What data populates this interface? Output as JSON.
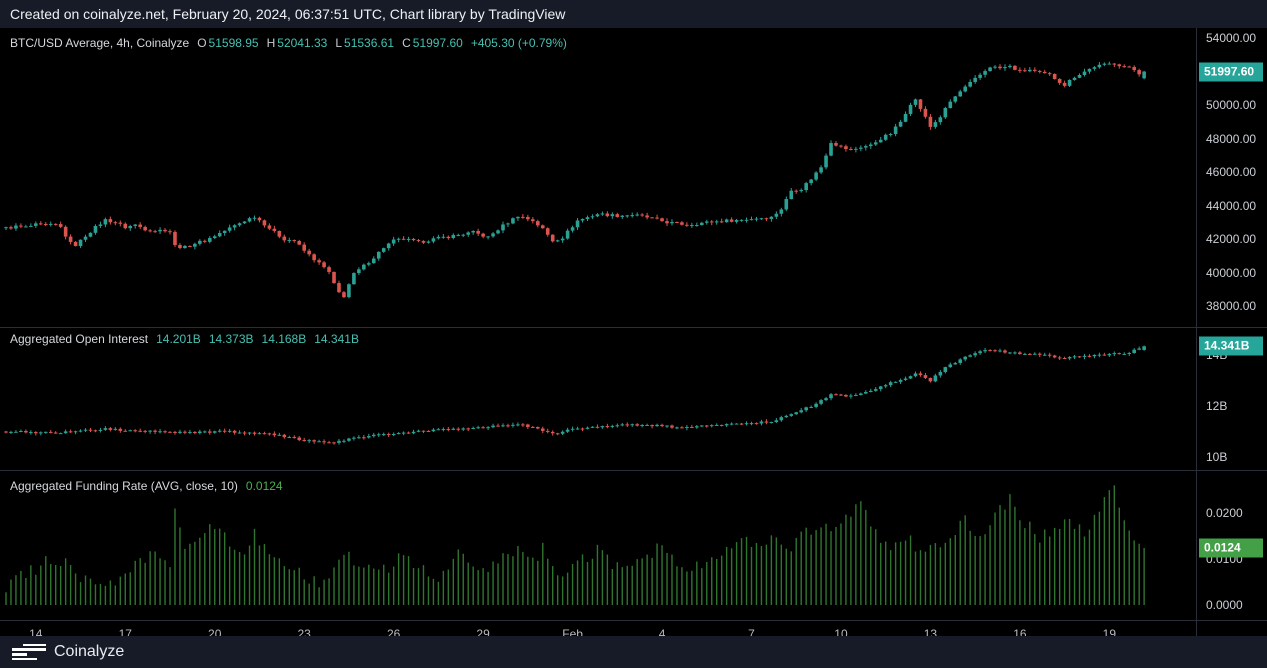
{
  "header": {
    "text": "Created on coinalyze.net, February 20, 2024, 06:37:51 UTC, Chart library by TradingView"
  },
  "footer": {
    "brand": "Coinalyze",
    "logo_icon": "coinalyze-orderbook-bars"
  },
  "colors": {
    "background": "#000000",
    "chrome_bar": "#161b27",
    "border": "#2a2e39",
    "candle_up": "#2ba094",
    "candle_down": "#dd544e",
    "funding_bar": "#30752f",
    "tag_teal": "#26a69a",
    "tag_green": "#43a047",
    "legend_value_teal": "#45c1b2",
    "legend_value_green": "#4caf50",
    "axis_text": "#ccd0d6",
    "time_text": "#b8bbc2"
  },
  "legends": {
    "price": {
      "title": "BTC/USD Average, 4h, Coinalyze",
      "ohlc": [
        {
          "k": "O",
          "v": "51598.95"
        },
        {
          "k": "H",
          "v": "52041.33"
        },
        {
          "k": "L",
          "v": "51536.61"
        },
        {
          "k": "C",
          "v": "51997.60"
        }
      ],
      "change": "+405.30 (+0.79%)"
    },
    "open_interest": {
      "title": "Aggregated Open Interest",
      "values": [
        "14.201B",
        "14.373B",
        "14.168B",
        "14.341B"
      ]
    },
    "funding": {
      "title": "Aggregated Funding Rate (AVG, close, 10)",
      "value": "0.0124"
    }
  },
  "tags": {
    "price": {
      "label": "51997.60",
      "value": 51997.6,
      "bg": "#26a69a"
    },
    "open_interest": {
      "label": "14.341B",
      "value": 14.341,
      "bg": "#26a69a"
    },
    "funding": {
      "label": "0.0124",
      "value": 0.0124,
      "bg": "#43a047"
    }
  },
  "chart_data": [
    {
      "id": "price",
      "type": "candlestick",
      "title": "BTC/USD Average, 4h, Coinalyze",
      "timeframe": "4h",
      "ylim": [
        36750,
        54600
      ],
      "grid": false,
      "legend_position": "top-left",
      "ticks": [
        {
          "v": 54000,
          "label": "54000.00"
        },
        {
          "v": 52000,
          "label": "52000.00"
        },
        {
          "v": 50000,
          "label": "50000.00"
        },
        {
          "v": 48000,
          "label": "48000.00"
        },
        {
          "v": 46000,
          "label": "46000.00"
        },
        {
          "v": 44000,
          "label": "44000.00"
        },
        {
          "v": 42000,
          "label": "42000.00"
        },
        {
          "v": 40000,
          "label": "40000.00"
        },
        {
          "v": 38000,
          "label": "38000.00"
        }
      ],
      "last_candle": {
        "o": 51598.95,
        "h": 52041.33,
        "l": 51536.61,
        "c": 51997.6
      },
      "close_path_anchors": [
        [
          0,
          42650
        ],
        [
          2,
          42750
        ],
        [
          4,
          42700
        ],
        [
          6,
          42850
        ],
        [
          8,
          42800
        ],
        [
          10,
          42850
        ],
        [
          11,
          42700
        ],
        [
          12,
          42200
        ],
        [
          13,
          41750
        ],
        [
          14,
          41650
        ],
        [
          15,
          41900
        ],
        [
          16,
          42200
        ],
        [
          18,
          42700
        ],
        [
          20,
          43150
        ],
        [
          22,
          43000
        ],
        [
          24,
          42700
        ],
        [
          26,
          42850
        ],
        [
          28,
          42600
        ],
        [
          30,
          42500
        ],
        [
          32,
          42550
        ],
        [
          33,
          42450
        ],
        [
          34,
          41600
        ],
        [
          36,
          41500
        ],
        [
          38,
          41750
        ],
        [
          40,
          41900
        ],
        [
          42,
          42200
        ],
        [
          44,
          42500
        ],
        [
          46,
          42800
        ],
        [
          48,
          43100
        ],
        [
          50,
          43350
        ],
        [
          52,
          42900
        ],
        [
          54,
          42400
        ],
        [
          56,
          42000
        ],
        [
          58,
          41900
        ],
        [
          60,
          41300
        ],
        [
          62,
          40800
        ],
        [
          64,
          40300
        ],
        [
          65,
          40000
        ],
        [
          66,
          39300
        ],
        [
          67,
          38800
        ],
        [
          68,
          38600
        ],
        [
          69,
          39300
        ],
        [
          70,
          39900
        ],
        [
          72,
          40400
        ],
        [
          74,
          40900
        ],
        [
          76,
          41500
        ],
        [
          78,
          41900
        ],
        [
          80,
          42000
        ],
        [
          83,
          41800
        ],
        [
          86,
          42000
        ],
        [
          90,
          42200
        ],
        [
          94,
          42400
        ],
        [
          97,
          42100
        ],
        [
          100,
          42800
        ],
        [
          103,
          43400
        ],
        [
          106,
          43100
        ],
        [
          108,
          42600
        ],
        [
          110,
          41900
        ],
        [
          112,
          42100
        ],
        [
          115,
          43100
        ],
        [
          119,
          43500
        ],
        [
          123,
          43400
        ],
        [
          126,
          43450
        ],
        [
          129,
          43300
        ],
        [
          133,
          43000
        ],
        [
          137,
          42850
        ],
        [
          141,
          43000
        ],
        [
          145,
          43100
        ],
        [
          148,
          43150
        ],
        [
          151,
          43250
        ],
        [
          154,
          43300
        ],
        [
          156,
          43800
        ],
        [
          158,
          44900
        ],
        [
          160,
          45000
        ],
        [
          162,
          45600
        ],
        [
          164,
          46300
        ],
        [
          166,
          47800
        ],
        [
          168,
          47500
        ],
        [
          170,
          47300
        ],
        [
          172,
          47500
        ],
        [
          174,
          47600
        ],
        [
          176,
          48000
        ],
        [
          178,
          48300
        ],
        [
          180,
          49000
        ],
        [
          182,
          50100
        ],
        [
          183,
          50300
        ],
        [
          184,
          49800
        ],
        [
          186,
          48700
        ],
        [
          188,
          49300
        ],
        [
          190,
          50200
        ],
        [
          192,
          50800
        ],
        [
          194,
          51300
        ],
        [
          196,
          51800
        ],
        [
          198,
          52300
        ],
        [
          200,
          52200
        ],
        [
          202,
          52300
        ],
        [
          204,
          52000
        ],
        [
          206,
          52100
        ],
        [
          208,
          51900
        ],
        [
          210,
          51800
        ],
        [
          212,
          51400
        ],
        [
          213,
          51200
        ],
        [
          215,
          51700
        ],
        [
          217,
          52000
        ],
        [
          219,
          52300
        ],
        [
          221,
          52400
        ],
        [
          223,
          52500
        ],
        [
          225,
          52300
        ],
        [
          227,
          52100
        ],
        [
          228,
          51900
        ],
        [
          229,
          51997.6
        ]
      ]
    },
    {
      "id": "open_interest",
      "type": "candlestick",
      "title": "Aggregated Open Interest",
      "unit": "B",
      "ylim": [
        9.49,
        15.1
      ],
      "grid": false,
      "ticks": [
        {
          "v": 14,
          "label": "14B"
        },
        {
          "v": 12,
          "label": "12B"
        },
        {
          "v": 10,
          "label": "10B"
        }
      ],
      "last_candle": {
        "o": 14.201,
        "h": 14.373,
        "l": 14.168,
        "c": 14.341
      },
      "close_path_anchors": [
        [
          0,
          11.0
        ],
        [
          10,
          10.95
        ],
        [
          20,
          11.1
        ],
        [
          33,
          10.95
        ],
        [
          45,
          11.0
        ],
        [
          55,
          10.85
        ],
        [
          60,
          10.65
        ],
        [
          65,
          10.55
        ],
        [
          70,
          10.75
        ],
        [
          77,
          10.9
        ],
        [
          83,
          11.0
        ],
        [
          90,
          11.1
        ],
        [
          94,
          11.15
        ],
        [
          100,
          11.25
        ],
        [
          103,
          11.3
        ],
        [
          107,
          11.1
        ],
        [
          110,
          10.9
        ],
        [
          114,
          11.1
        ],
        [
          119,
          11.2
        ],
        [
          124,
          11.25
        ],
        [
          129,
          11.25
        ],
        [
          133,
          11.2
        ],
        [
          137,
          11.15
        ],
        [
          142,
          11.25
        ],
        [
          148,
          11.3
        ],
        [
          154,
          11.4
        ],
        [
          158,
          11.7
        ],
        [
          162,
          12.0
        ],
        [
          164,
          12.2
        ],
        [
          166,
          12.45
        ],
        [
          170,
          12.4
        ],
        [
          174,
          12.6
        ],
        [
          178,
          12.9
        ],
        [
          181,
          13.1
        ],
        [
          183,
          13.3
        ],
        [
          186,
          13.0
        ],
        [
          189,
          13.5
        ],
        [
          192,
          13.8
        ],
        [
          195,
          14.1
        ],
        [
          198,
          14.2
        ],
        [
          202,
          14.1
        ],
        [
          206,
          14.05
        ],
        [
          210,
          13.95
        ],
        [
          213,
          13.85
        ],
        [
          216,
          13.95
        ],
        [
          220,
          14.0
        ],
        [
          223,
          14.05
        ],
        [
          226,
          14.1
        ],
        [
          229,
          14.341
        ]
      ]
    },
    {
      "id": "funding_rate",
      "type": "bar",
      "title": "Aggregated Funding Rate (AVG, close, 10)",
      "ylim": [
        -0.00326,
        0.02935
      ],
      "grid": false,
      "baseline": 0,
      "ticks": [
        {
          "v": 0.02,
          "label": "0.0200"
        },
        {
          "v": 0.01,
          "label": "0.0100"
        },
        {
          "v": 0.0,
          "label": "0.0000"
        }
      ],
      "last_value": 0.0124,
      "value_anchors": [
        [
          0,
          0.004
        ],
        [
          3,
          0.006
        ],
        [
          6,
          0.008
        ],
        [
          9,
          0.01
        ],
        [
          12,
          0.009
        ],
        [
          15,
          0.006
        ],
        [
          18,
          0.005
        ],
        [
          21,
          0.004
        ],
        [
          24,
          0.007
        ],
        [
          27,
          0.009
        ],
        [
          30,
          0.011
        ],
        [
          33,
          0.009
        ],
        [
          34,
          0.021
        ],
        [
          36,
          0.012
        ],
        [
          39,
          0.015
        ],
        [
          42,
          0.017
        ],
        [
          45,
          0.014
        ],
        [
          48,
          0.012
        ],
        [
          50,
          0.016
        ],
        [
          53,
          0.01
        ],
        [
          56,
          0.008
        ],
        [
          59,
          0.007
        ],
        [
          62,
          0.005
        ],
        [
          65,
          0.006
        ],
        [
          68,
          0.011
        ],
        [
          71,
          0.009
        ],
        [
          74,
          0.008
        ],
        [
          77,
          0.007
        ],
        [
          79,
          0.012
        ],
        [
          82,
          0.008
        ],
        [
          85,
          0.007
        ],
        [
          88,
          0.006
        ],
        [
          91,
          0.011
        ],
        [
          94,
          0.009
        ],
        [
          97,
          0.008
        ],
        [
          100,
          0.01
        ],
        [
          103,
          0.012
        ],
        [
          106,
          0.009
        ],
        [
          108,
          0.013
        ],
        [
          110,
          0.007
        ],
        [
          113,
          0.008
        ],
        [
          116,
          0.01
        ],
        [
          119,
          0.012
        ],
        [
          122,
          0.009
        ],
        [
          125,
          0.008
        ],
        [
          128,
          0.009
        ],
        [
          131,
          0.013
        ],
        [
          134,
          0.01
        ],
        [
          137,
          0.008
        ],
        [
          140,
          0.009
        ],
        [
          143,
          0.01
        ],
        [
          146,
          0.012
        ],
        [
          149,
          0.014
        ],
        [
          152,
          0.012
        ],
        [
          155,
          0.015
        ],
        [
          158,
          0.013
        ],
        [
          161,
          0.016
        ],
        [
          164,
          0.018
        ],
        [
          166,
          0.015
        ],
        [
          169,
          0.019
        ],
        [
          172,
          0.022
        ],
        [
          175,
          0.016
        ],
        [
          178,
          0.013
        ],
        [
          181,
          0.015
        ],
        [
          184,
          0.011
        ],
        [
          187,
          0.013
        ],
        [
          190,
          0.016
        ],
        [
          193,
          0.018
        ],
        [
          196,
          0.015
        ],
        [
          199,
          0.02
        ],
        [
          202,
          0.023
        ],
        [
          205,
          0.018
        ],
        [
          208,
          0.014
        ],
        [
          211,
          0.017
        ],
        [
          214,
          0.019
        ],
        [
          217,
          0.015
        ],
        [
          220,
          0.021
        ],
        [
          223,
          0.026
        ],
        [
          225,
          0.018
        ],
        [
          227,
          0.014
        ],
        [
          229,
          0.0124
        ]
      ]
    }
  ],
  "time_axis": {
    "bars": 230,
    "bar_interval": "4h",
    "ticks": [
      {
        "bar": 6,
        "label": "14"
      },
      {
        "bar": 24,
        "label": "17"
      },
      {
        "bar": 42,
        "label": "20"
      },
      {
        "bar": 60,
        "label": "23"
      },
      {
        "bar": 78,
        "label": "26"
      },
      {
        "bar": 96,
        "label": "29"
      },
      {
        "bar": 114,
        "label": "Feb"
      },
      {
        "bar": 132,
        "label": "4"
      },
      {
        "bar": 150,
        "label": "7"
      },
      {
        "bar": 168,
        "label": "10"
      },
      {
        "bar": 186,
        "label": "13"
      },
      {
        "bar": 204,
        "label": "16"
      },
      {
        "bar": 222,
        "label": "19"
      }
    ]
  }
}
